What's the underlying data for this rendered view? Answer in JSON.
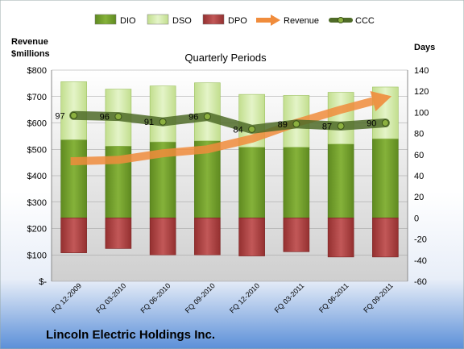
{
  "chart_data": {
    "type": "bar",
    "title": "Quarterly Periods",
    "company": "Lincoln Electric Holdings Inc.",
    "left_axis_title": [
      "Revenue",
      "$millions"
    ],
    "right_axis_title": "Days",
    "left_ticks": [
      "$-",
      "$100",
      "$200",
      "$300",
      "$400",
      "$500",
      "$600",
      "$700",
      "$800"
    ],
    "right_ticks": [
      "-60",
      "-40",
      "-20",
      "0",
      "20",
      "40",
      "60",
      "80",
      "100",
      "120",
      "140"
    ],
    "left_ylim": [
      0,
      800
    ],
    "right_ylim": [
      -60,
      140
    ],
    "categories": [
      "FQ 12-2009",
      "FQ 03-2010",
      "FQ 06-2010",
      "FQ 09-2010",
      "FQ 12-2010",
      "FQ 03-2011",
      "FQ 06-2011",
      "FQ 09-2011"
    ],
    "series": [
      {
        "name": "DIO",
        "axis": "right",
        "values": [
          74,
          68,
          72,
          73,
          67,
          67,
          70,
          75
        ]
      },
      {
        "name": "DSO",
        "axis": "right",
        "values": [
          55,
          54,
          53,
          55,
          50,
          49,
          49,
          49
        ]
      },
      {
        "name": "DPO",
        "axis": "right",
        "values": [
          -33,
          -29,
          -35,
          -35,
          -36,
          -32,
          -37,
          -37
        ]
      },
      {
        "name": "Revenue",
        "axis": "left",
        "values": [
          455,
          460,
          485,
          500,
          540,
          600,
          650,
          695
        ]
      },
      {
        "name": "CCC",
        "axis": "right",
        "values": [
          97,
          96,
          91,
          96,
          84,
          89,
          87,
          90
        ]
      }
    ],
    "ccc_labels": [
      "97",
      "96",
      "91",
      "96",
      "84",
      "89",
      "87",
      "90"
    ],
    "legend": [
      {
        "name": "DIO",
        "kind": "box",
        "color": "#6f9a28"
      },
      {
        "name": "DSO",
        "kind": "box",
        "color": "#d3ebaa"
      },
      {
        "name": "DPO",
        "kind": "box",
        "color": "#a83c3c"
      },
      {
        "name": "Revenue",
        "kind": "arrow",
        "color": "#f08c3c"
      },
      {
        "name": "CCC",
        "kind": "line-marker",
        "color": "#4f6b28"
      }
    ],
    "legend_position": "top",
    "colors": {
      "dio": "#6f9a28",
      "dso": "#d3ebaa",
      "dpo": "#a83c3c",
      "revenue": "#f08c3c",
      "ccc": "#4f6b28",
      "ccc_marker": "#8cb040",
      "plot_bg_top": "#ffffff",
      "plot_bg_bottom": "#d5d5d5",
      "bottom_band": "#5b8fd8"
    },
    "grid": true
  }
}
